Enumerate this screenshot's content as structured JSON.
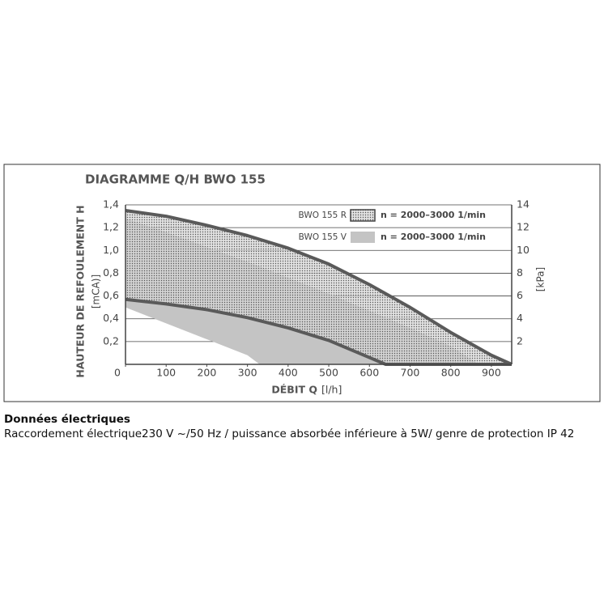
{
  "chart_data": {
    "type": "band",
    "title": "DIAGRAMME Q/H BWO 155",
    "ylabel": "HAUTEUR DE REFOULEMENT H",
    "ylabel_unit": "[mCA)]",
    "y2label": "[kPa]",
    "xlabel": "DÉBIT Q",
    "xlabel_unit": "[l/h]",
    "xlim": [
      0,
      950
    ],
    "xticks": [
      0,
      100,
      200,
      300,
      400,
      500,
      600,
      700,
      800,
      900
    ],
    "ylim": [
      0,
      1.4
    ],
    "yticks": [
      {
        "value": 0.2,
        "label": "0,2"
      },
      {
        "value": 0.4,
        "label": "0,4"
      },
      {
        "value": 0.6,
        "label": "0,6"
      },
      {
        "value": 0.8,
        "label": "0,8"
      },
      {
        "value": 1.0,
        "label": "1,0"
      },
      {
        "value": 1.2,
        "label": "1,2"
      },
      {
        "value": 1.4,
        "label": "1,4"
      }
    ],
    "y2lim": [
      0,
      14
    ],
    "y2ticks": [
      2,
      4,
      6,
      8,
      10,
      12,
      14
    ],
    "grid": true,
    "series": [
      {
        "name": "BWO 155 V",
        "label": "n = 2000–3000 1/min",
        "color": "#bdbdbd",
        "x": [
          0,
          100,
          200,
          300,
          330,
          400,
          500,
          600,
          700,
          800,
          870
        ],
        "upper": [
          1.28,
          1.16,
          1.03,
          0.9,
          0.86,
          0.76,
          0.62,
          0.47,
          0.32,
          0.16,
          0
        ],
        "lower": [
          0.5,
          0.36,
          0.22,
          0.08,
          0,
          0,
          0,
          0,
          0,
          0,
          0
        ]
      },
      {
        "name": "BWO 155 R",
        "label": "n = 2000–3000 1/min",
        "color": "#5a5a5a",
        "x": [
          0,
          100,
          200,
          300,
          400,
          500,
          600,
          640,
          700,
          800,
          900,
          950
        ],
        "upper": [
          1.35,
          1.3,
          1.22,
          1.13,
          1.02,
          0.88,
          0.7,
          0.62,
          0.5,
          0.28,
          0.08,
          0
        ],
        "lower": [
          0.57,
          0.53,
          0.48,
          0.41,
          0.32,
          0.21,
          0.06,
          0,
          0,
          0,
          0,
          0
        ]
      }
    ]
  },
  "document": {
    "heading": "Données électriques",
    "text": "Raccordement électrique230 V ~/50 Hz / puissance absorbée inférieure à 5W/ genre de protection IP 42"
  }
}
